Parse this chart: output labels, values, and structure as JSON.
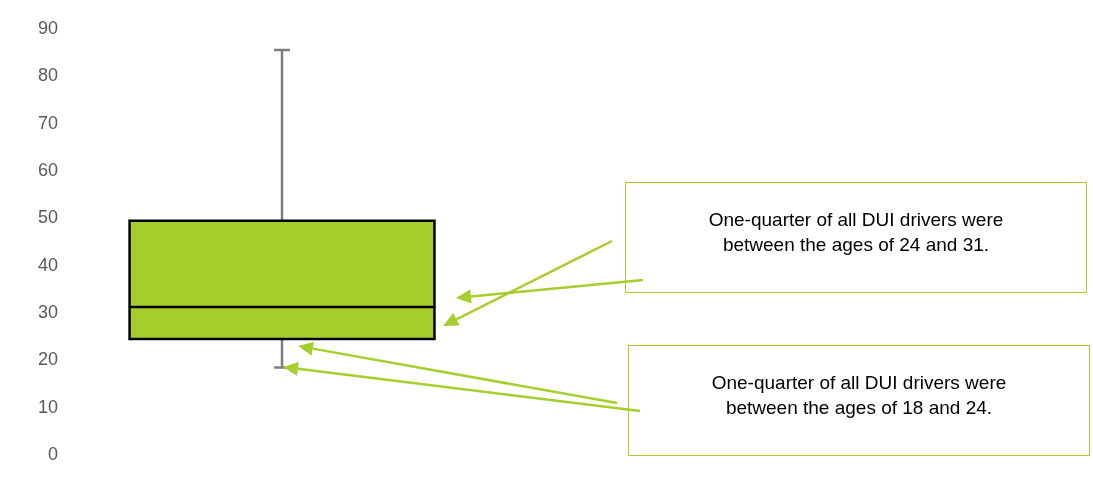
{
  "chart_data": {
    "type": "box",
    "categories": [
      null
    ],
    "boxes": [
      {
        "low": 18.5,
        "q1": 24.5,
        "median": 31.3,
        "q3": 49.5,
        "high": 85.5
      }
    ],
    "color": "#a6ce2c",
    "ylim": [
      0,
      90
    ],
    "yticks": [
      0,
      10,
      20,
      30,
      40,
      50,
      60,
      70,
      80,
      90
    ],
    "grid": false,
    "tick_labels": "y",
    "annotations": [
      "One-quarter of all DUI drivers were between the ages of 24 and 31.",
      "One-quarter of all DUI drivers were between the ages of 18 and 24."
    ]
  }
}
